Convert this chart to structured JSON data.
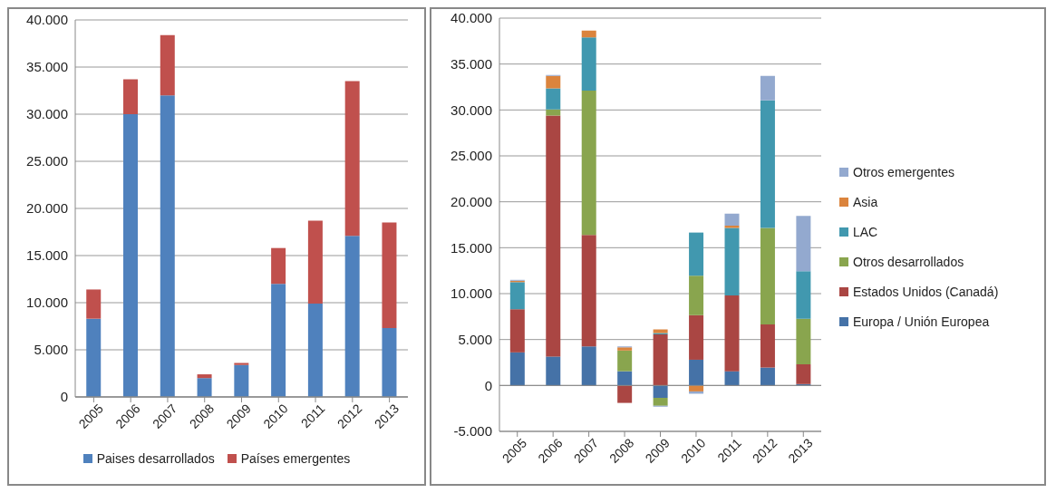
{
  "chart_data": [
    {
      "type": "bar",
      "stacked": true,
      "categories": [
        "2005",
        "2006",
        "2007",
        "2008",
        "2009",
        "2010",
        "2011",
        "2012",
        "2013"
      ],
      "series": [
        {
          "name": "Paises desarrollados",
          "color": "#4f81bd",
          "values": [
            8300,
            30000,
            32000,
            2000,
            3400,
            12000,
            9900,
            17100,
            7300
          ]
        },
        {
          "name": "Países emergentes",
          "color": "#c0504d",
          "values": [
            3100,
            3700,
            6400,
            400,
            200,
            3800,
            8800,
            16400,
            11200
          ]
        }
      ],
      "ylim": [
        0,
        40000
      ],
      "yticks": [
        {
          "value": 0,
          "label": "0"
        },
        {
          "value": 5000,
          "label": "5.000"
        },
        {
          "value": 10000,
          "label": "10.000"
        },
        {
          "value": 15000,
          "label": "15.000"
        },
        {
          "value": 20000,
          "label": "20.000"
        },
        {
          "value": 25000,
          "label": "25.000"
        },
        {
          "value": 30000,
          "label": "30.000"
        },
        {
          "value": 35000,
          "label": "35.000"
        },
        {
          "value": 40000,
          "label": "40.000"
        }
      ],
      "grid": "y",
      "legend": "bottom"
    },
    {
      "type": "bar",
      "stacked": true,
      "categories": [
        "2005",
        "2006",
        "2007",
        "2008",
        "2009",
        "2010",
        "2011",
        "2012",
        "2013"
      ],
      "series": [
        {
          "name": "Europa / Unión Europea",
          "color": "#4572a7",
          "values": [
            3600,
            3150,
            4250,
            1550,
            -1350,
            2800,
            1550,
            1950,
            150
          ]
        },
        {
          "name": "Estados Unidos (Canadá)",
          "color": "#aa4643",
          "values": [
            4700,
            26250,
            12150,
            -1900,
            5550,
            4850,
            8250,
            4700,
            2150
          ]
        },
        {
          "name": "Otros desarrollados",
          "color": "#89a54e",
          "values": [
            0,
            650,
            15700,
            2250,
            -850,
            4300,
            0,
            10500,
            4950
          ]
        },
        {
          "name": "LAC",
          "color": "#4198af",
          "values": [
            2950,
            2300,
            5800,
            0,
            150,
            4700,
            7350,
            13900,
            5200
          ]
        },
        {
          "name": "Asia",
          "color": "#db843d",
          "values": [
            150,
            1350,
            750,
            350,
            400,
            -650,
            250,
            0,
            0
          ]
        },
        {
          "name": "Otros emergentes",
          "color": "#93a9cf",
          "values": [
            100,
            100,
            0,
            100,
            -100,
            -250,
            1300,
            2650,
            6000
          ]
        }
      ],
      "ylim": [
        -5000,
        40000
      ],
      "yticks": [
        {
          "value": -5000,
          "label": "-5.000"
        },
        {
          "value": 0,
          "label": "0"
        },
        {
          "value": 5000,
          "label": "5.000"
        },
        {
          "value": 10000,
          "label": "10.000"
        },
        {
          "value": 15000,
          "label": "15.000"
        },
        {
          "value": 20000,
          "label": "20.000"
        },
        {
          "value": 25000,
          "label": "25.000"
        },
        {
          "value": 30000,
          "label": "30.000"
        },
        {
          "value": 35000,
          "label": "35.000"
        },
        {
          "value": 40000,
          "label": "40.000"
        }
      ],
      "grid": "y",
      "legend": "right"
    }
  ]
}
